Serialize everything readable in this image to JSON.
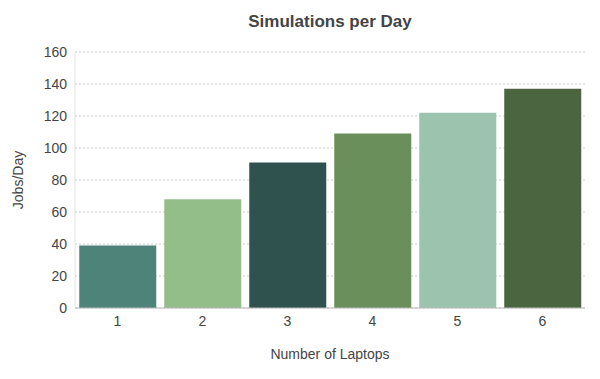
{
  "chart_data": {
    "type": "bar",
    "title": "Simulations per Day",
    "x_label": "Number of Laptops",
    "y_label": "Jobs/Day",
    "categories": [
      "1",
      "2",
      "3",
      "4",
      "5",
      "6"
    ],
    "values": [
      39,
      68,
      91,
      109,
      122,
      137
    ],
    "colors": [
      "#4e8379",
      "#93bd89",
      "#30524f",
      "#6a8f5a",
      "#9bc3ad",
      "#4a6540"
    ],
    "ylim": [
      0,
      160
    ],
    "yticks": [
      0,
      20,
      40,
      60,
      80,
      100,
      120,
      140,
      160
    ],
    "grid": true
  }
}
